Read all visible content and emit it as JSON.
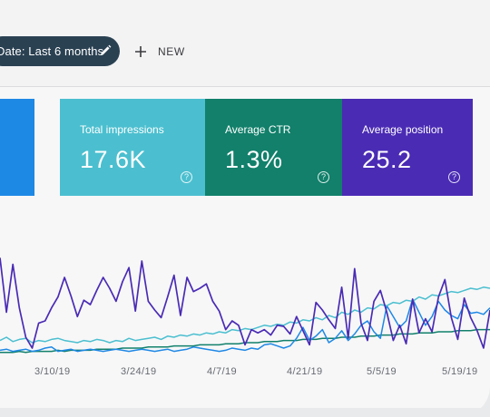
{
  "toolbar": {
    "date_filter_label": "Date: Last 6 months",
    "new_button_label": "NEW"
  },
  "metrics": [
    {
      "label": "Total impressions",
      "value": "17.6K",
      "color": "#4bbfcf"
    },
    {
      "label": "Average CTR",
      "value": "1.3%",
      "color": "#12806b"
    },
    {
      "label": "Average position",
      "value": "25.2",
      "color": "#4a2bb4"
    }
  ],
  "clicks_card_color": "#1e88e5",
  "help_glyph": "?",
  "chart_data": {
    "type": "line",
    "x_tick_labels": [
      "3/10/19",
      "3/24/19",
      "4/7/19",
      "4/21/19",
      "5/5/19",
      "5/19/19"
    ],
    "legend": "none",
    "grid": false,
    "y_values_unlabeled": true,
    "series": [
      {
        "color": "#4a2bb4",
        "values": [
          88,
          38,
          82,
          42,
          15,
          5,
          28,
          30,
          42,
          52,
          70,
          53,
          34,
          49,
          45,
          58,
          70,
          60,
          48,
          66,
          79,
          39,
          85,
          48,
          40,
          33,
          52,
          72,
          35,
          70,
          57,
          60,
          64,
          48,
          39,
          22,
          30,
          26,
          8,
          22,
          19,
          22,
          17,
          26,
          25,
          18,
          34,
          21,
          8,
          47,
          40,
          31,
          23,
          61,
          14,
          78,
          28,
          12,
          48,
          58,
          38,
          12,
          26,
          9,
          50,
          19,
          32,
          20,
          52,
          68,
          33,
          13,
          51,
          33,
          21,
          5,
          40
        ]
      },
      {
        "color": "#4bbfcf",
        "values": [
          12,
          15,
          11,
          13,
          14,
          10,
          12,
          11,
          13,
          14,
          12,
          11,
          10,
          12,
          11,
          13,
          12,
          10,
          12,
          11,
          14,
          12,
          13,
          14,
          15,
          13,
          16,
          15,
          17,
          16,
          18,
          17,
          19,
          18,
          20,
          19,
          22,
          21,
          23,
          22,
          24,
          26,
          25,
          27,
          26,
          29,
          28,
          31,
          30,
          33,
          31,
          35,
          33,
          38,
          36,
          40,
          38,
          42,
          41,
          45,
          44,
          47,
          46,
          49,
          48,
          52,
          50,
          54,
          53,
          55,
          57,
          56,
          58,
          60,
          59,
          61,
          60
        ]
      },
      {
        "color": "#1e88e5",
        "values": [
          3,
          4,
          2,
          3,
          4,
          2,
          3,
          5,
          6,
          2,
          3,
          4,
          2,
          3,
          4,
          3,
          2,
          3,
          4,
          3,
          2,
          3,
          4,
          3,
          2,
          3,
          4,
          2,
          3,
          4,
          6,
          5,
          4,
          3,
          2,
          3,
          5,
          4,
          3,
          5,
          4,
          8,
          9,
          7,
          5,
          7,
          14,
          24,
          12,
          16,
          22,
          10,
          14,
          21,
          12,
          18,
          26,
          30,
          20,
          14,
          44,
          34,
          24,
          30,
          50,
          38,
          26,
          34,
          48,
          40,
          35,
          32,
          45,
          37,
          38,
          36,
          42
        ]
      },
      {
        "color": "#12806b",
        "values": [
          1,
          1,
          1,
          2,
          1,
          2,
          2,
          2,
          2,
          3,
          2,
          3,
          3,
          3,
          3,
          4,
          4,
          4,
          4,
          5,
          5,
          5,
          5,
          6,
          6,
          6,
          6,
          7,
          7,
          7,
          7,
          8,
          8,
          8,
          8,
          9,
          9,
          9,
          10,
          10,
          10,
          11,
          11,
          11,
          12,
          12,
          12,
          13,
          13,
          13,
          14,
          14,
          14,
          15,
          15,
          15,
          16,
          16,
          16,
          17,
          17,
          17,
          18,
          18,
          18,
          19,
          19,
          19,
          20,
          20,
          20,
          21,
          21,
          21,
          22,
          22,
          22
        ]
      }
    ]
  }
}
